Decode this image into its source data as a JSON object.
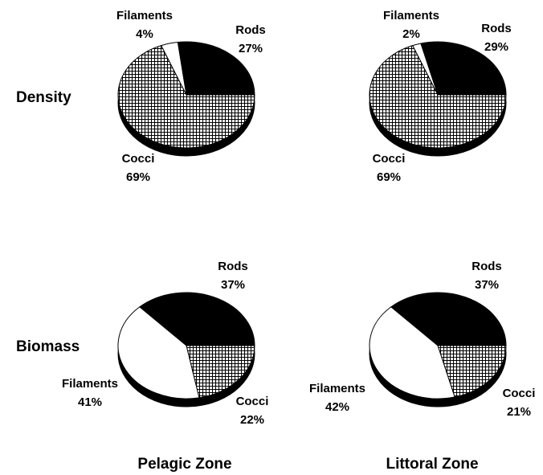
{
  "rows": [
    "Density",
    "Biomass"
  ],
  "columns": [
    "Pelagic Zone",
    "Littoral Zone"
  ],
  "chart_data": [
    {
      "type": "pie",
      "categories": [
        "Rods",
        "Cocci",
        "Filaments"
      ],
      "values": [
        27,
        69,
        4
      ],
      "value_labels": [
        "27%",
        "69%",
        "4%"
      ],
      "fills": [
        "solid",
        "crosshatch",
        "empty"
      ]
    },
    {
      "type": "pie",
      "categories": [
        "Rods",
        "Cocci",
        "Filaments"
      ],
      "values": [
        29,
        69,
        2
      ],
      "value_labels": [
        "29%",
        "69%",
        "2%"
      ],
      "fills": [
        "solid",
        "crosshatch",
        "empty"
      ]
    },
    {
      "type": "pie",
      "categories": [
        "Rods",
        "Cocci",
        "Filaments"
      ],
      "values": [
        37,
        22,
        41
      ],
      "value_labels": [
        "37%",
        "22%",
        "41%"
      ],
      "fills": [
        "solid",
        "crosshatch",
        "empty"
      ]
    },
    {
      "type": "pie",
      "categories": [
        "Rods",
        "Cocci",
        "Filaments"
      ],
      "values": [
        37,
        21,
        42
      ],
      "value_labels": [
        "37%",
        "21%",
        "42%"
      ],
      "fills": [
        "solid",
        "crosshatch",
        "empty"
      ]
    }
  ]
}
